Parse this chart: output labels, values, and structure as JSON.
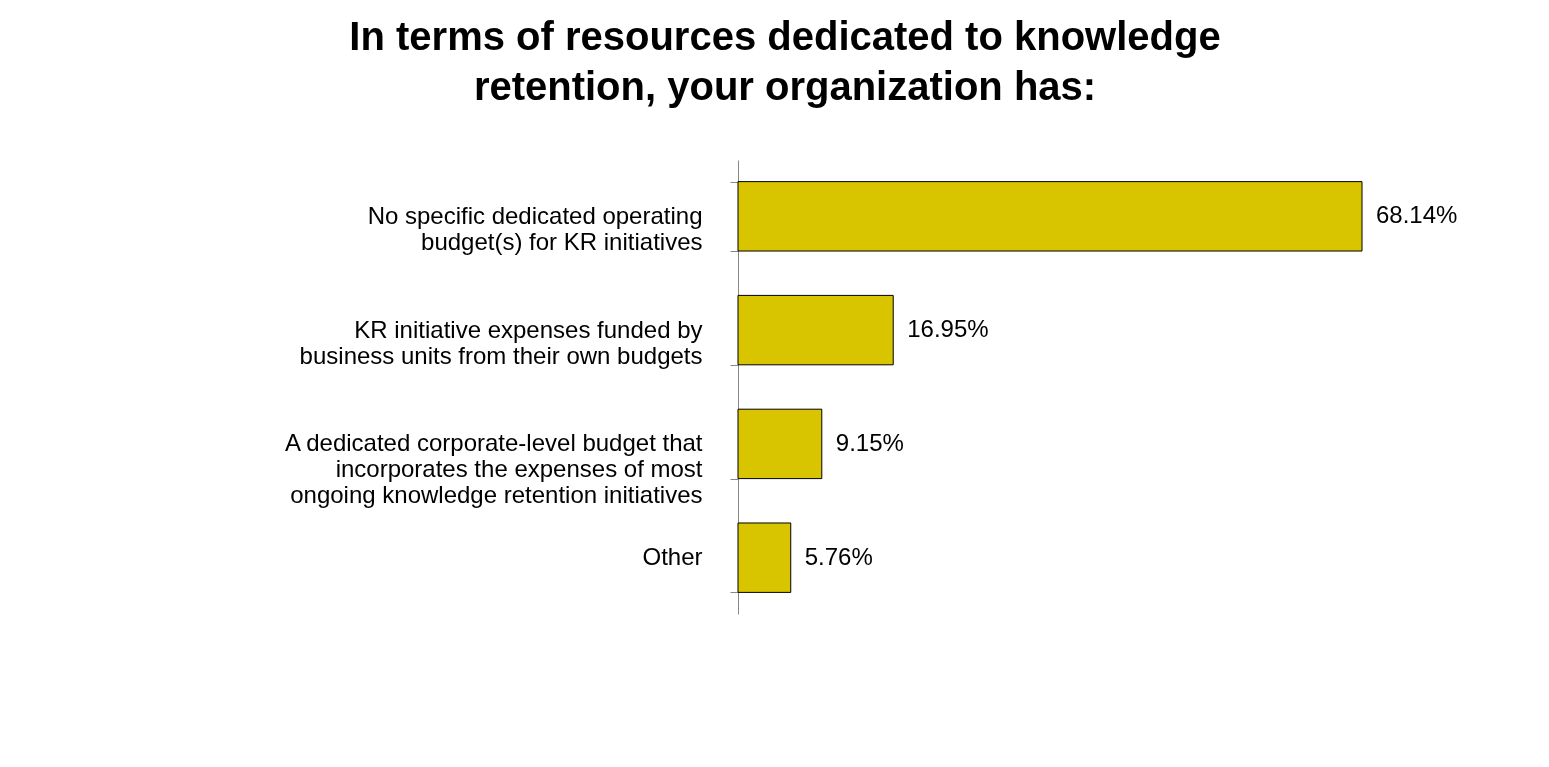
{
  "chart_data": {
    "type": "bar",
    "orientation": "horizontal",
    "title": "In terms of resources dedicated to knowledge retention, your organization has:",
    "categories": [
      "No specific dedicated operating budget(s) for KR initiatives",
      "KR initiative expenses funded by business units from their own budgets",
      "A dedicated corporate-level budget that incorporates the expenses of most ongoing knowledge retention initiatives",
      "Other"
    ],
    "values": [
      68.14,
      16.95,
      9.15,
      5.76
    ],
    "value_labels": [
      "68.14%",
      "16.95%",
      "9.15%",
      "5.76%"
    ],
    "color": "#d9c400"
  }
}
